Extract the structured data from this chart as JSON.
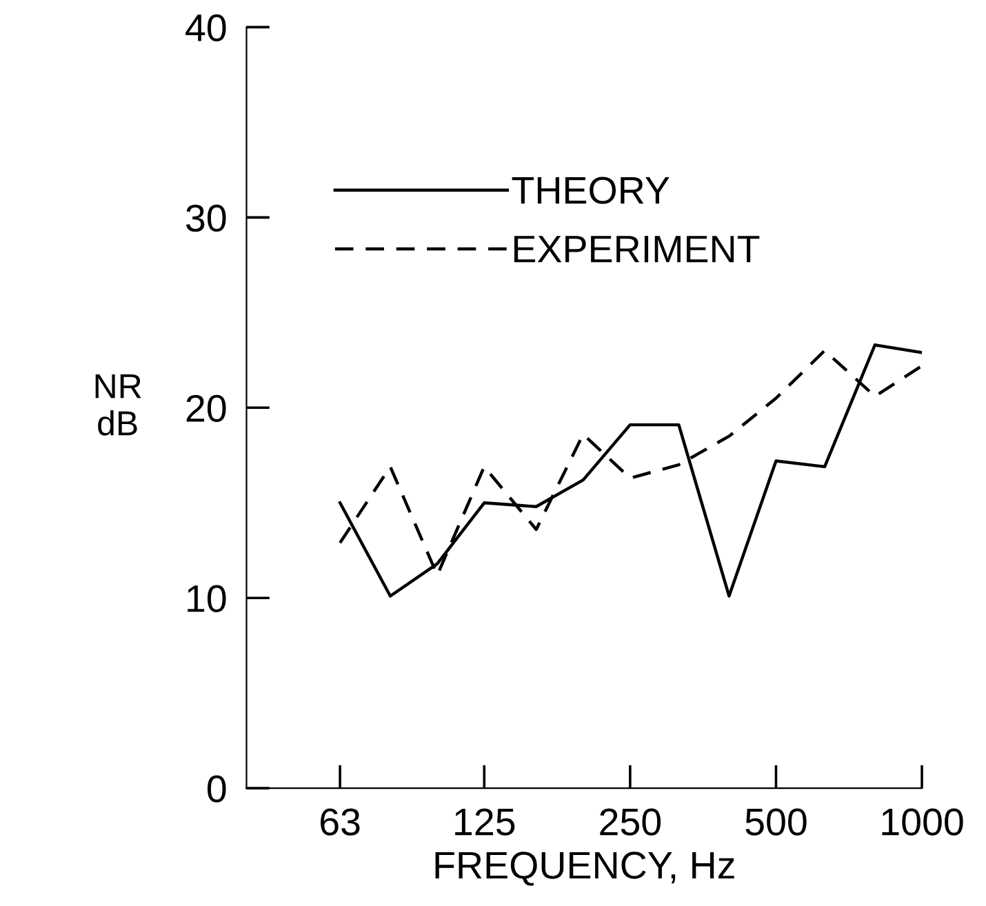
{
  "chart_data": {
    "type": "line",
    "xlabel": "FREQUENCY, Hz",
    "ylabel": "NR\ndB",
    "log": "x",
    "x": [
      63,
      80,
      100,
      125,
      160,
      200,
      250,
      315,
      400,
      500,
      630,
      800,
      1000
    ],
    "xlim": [
      40.4,
      1000
    ],
    "xticks": [
      63,
      125,
      250,
      500,
      1000
    ],
    "ylim": [
      0,
      40
    ],
    "yticks": [
      0,
      10,
      20,
      30,
      40
    ],
    "grid": false,
    "legend": "top left",
    "marker": "none",
    "series": [
      {
        "name": "THEORY",
        "color": "#000000",
        "line_style": "solid",
        "values": [
          15.0,
          10.1,
          11.8,
          15.0,
          14.8,
          16.2,
          19.1,
          19.1,
          10.1,
          17.2,
          16.9,
          23.3,
          22.9
        ]
      },
      {
        "name": "EXPERIMENT",
        "color": "#000000",
        "line_style": "dashed",
        "values": [
          12.9,
          16.9,
          11.2,
          16.9,
          13.6,
          18.6,
          16.3,
          17.0,
          18.5,
          20.5,
          23.0,
          20.6,
          22.2
        ]
      }
    ]
  }
}
